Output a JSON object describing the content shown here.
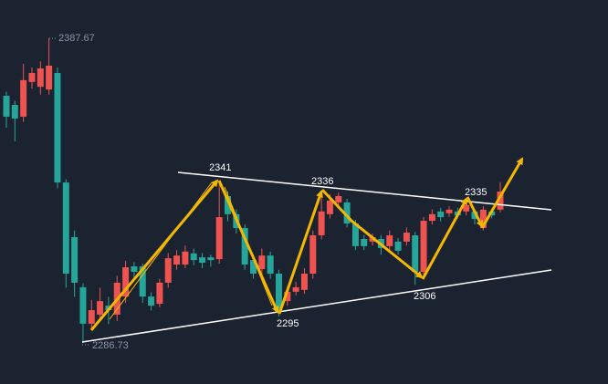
{
  "chart_data": {
    "type": "candlestick",
    "up_color": "#ef5350",
    "down_color": "#26a69a",
    "open": [
      2368.6,
      2365.6,
      2361.7,
      2373.2,
      2371.6,
      2370.7,
      2376.2,
      2339.9,
      2321.8,
      2305.2,
      2293.1,
      2296.1,
      2299.1,
      2296.1,
      2302.1,
      2312.1,
      2312.1,
      2302.1,
      2299.7,
      2306.7,
      2312.7,
      2312.7,
      2316.4,
      2315.1,
      2315.1,
      2314.5,
      2335.4,
      2329.4,
      2324.8,
      2314.2,
      2311.2,
      2315.7,
      2309.7,
      2300.6,
      2303.7,
      2304.3,
      2309.7,
      2322.4,
      2329.4,
      2333.3,
      2333.3,
      2326.3,
      2321.2,
      2320.3,
      2321.2,
      2318.8,
      2320.3,
      2320.3,
      2322.4,
      2310.3,
      2327.2,
      2330.3,
      2329.7,
      2330.3,
      2330.3,
      2330.3,
      2324.8,
      2330.3,
      2330.9
    ],
    "high": [
      2370,
      2367,
      2379.2,
      2378,
      2380,
      2387.67,
      2378,
      2341,
      2324,
      2306.5,
      2301,
      2305,
      2302,
      2309,
      2314,
      2313.5,
      2313,
      2303.5,
      2308,
      2316.5,
      2317.5,
      2319,
      2318,
      2316.5,
      2316,
      2340.5,
      2337,
      2331,
      2326,
      2316,
      2318,
      2317,
      2311,
      2305.5,
      2307,
      2311.5,
      2324,
      2335.5,
      2336,
      2336.5,
      2334.5,
      2327.5,
      2322.5,
      2323,
      2322.5,
      2324,
      2321.5,
      2325,
      2323.5,
      2328.5,
      2331,
      2331.5,
      2332,
      2331.5,
      2334.5,
      2331,
      2332,
      2331,
      2340
    ],
    "low": [
      2358,
      2353.5,
      2360,
      2371,
      2369,
      2369,
      2338,
      2305,
      2302,
      2286.73,
      2291,
      2294,
      2293,
      2294,
      2300,
      2308,
      2300,
      2297.5,
      2298.5,
      2305,
      2311,
      2311.5,
      2312.5,
      2311.5,
      2312,
      2313,
      2327,
      2323,
      2311,
      2308,
      2309.5,
      2308,
      2295.5,
      2299,
      2302.5,
      2303,
      2308,
      2321,
      2328,
      2332,
      2325,
      2317.5,
      2317.5,
      2319,
      2316,
      2317.5,
      2316,
      2319,
      2306,
      2308.5,
      2326,
      2327,
      2328.5,
      2328,
      2329,
      2326,
      2324,
      2328,
      2330
    ],
    "close": [
      2361.7,
      2361.1,
      2373.8,
      2376.2,
      2377.7,
      2378.6,
      2339.9,
      2309.7,
      2306.7,
      2293.1,
      2297.6,
      2300.6,
      2297.6,
      2306.7,
      2311.8,
      2310.3,
      2302.1,
      2299.1,
      2306.7,
      2314.8,
      2315.7,
      2317.0,
      2314.2,
      2313.3,
      2314.2,
      2328.4,
      2329.4,
      2324.8,
      2312.7,
      2309.7,
      2315.7,
      2309.7,
      2297.6,
      2303.7,
      2305.2,
      2309.7,
      2322.4,
      2330.3,
      2333.9,
      2335.4,
      2326.3,
      2318.8,
      2318.8,
      2321.8,
      2318.2,
      2322.4,
      2317.3,
      2323.3,
      2310.3,
      2327.2,
      2329.4,
      2328.4,
      2330.9,
      2329.0,
      2332.4,
      2327.8,
      2330.9,
      2329.0,
      2336.9
    ],
    "annotations": [
      2387.67,
      2286.73,
      2341,
      2336,
      2335,
      2295,
      2306
    ]
  }
}
